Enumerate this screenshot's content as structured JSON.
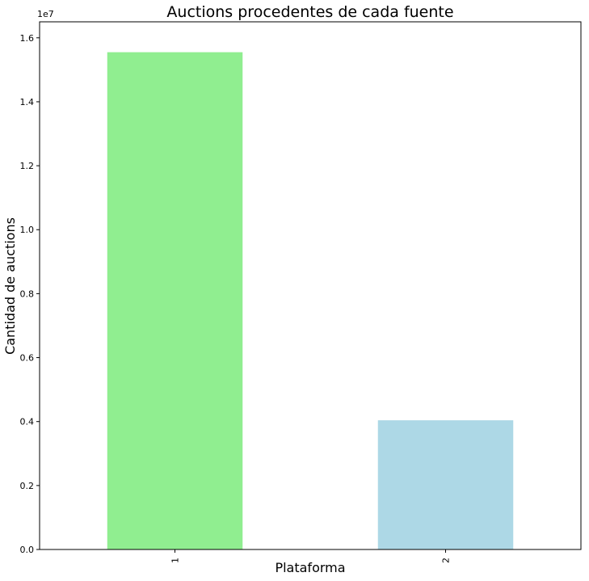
{
  "chart_data": {
    "type": "bar",
    "title": "Auctions procedentes de cada fuente",
    "xlabel": "Plataforma",
    "ylabel": "Cantidad de auctions",
    "categories": [
      "1",
      "2"
    ],
    "values": [
      15550000,
      4040000
    ],
    "colors": [
      "#90ee90",
      "#add8e6"
    ],
    "ylim": [
      0,
      16500000
    ],
    "y_ticks": [
      0,
      2000000,
      4000000,
      6000000,
      8000000,
      10000000,
      12000000,
      14000000,
      16000000
    ],
    "y_tick_labels": [
      "0.0",
      "0.2",
      "0.4",
      "0.6",
      "0.8",
      "1.0",
      "1.2",
      "1.4",
      "1.6"
    ],
    "y_offset_label": "1e7",
    "x_tick_rotation": "vertical",
    "grid": false,
    "legend": "none"
  }
}
